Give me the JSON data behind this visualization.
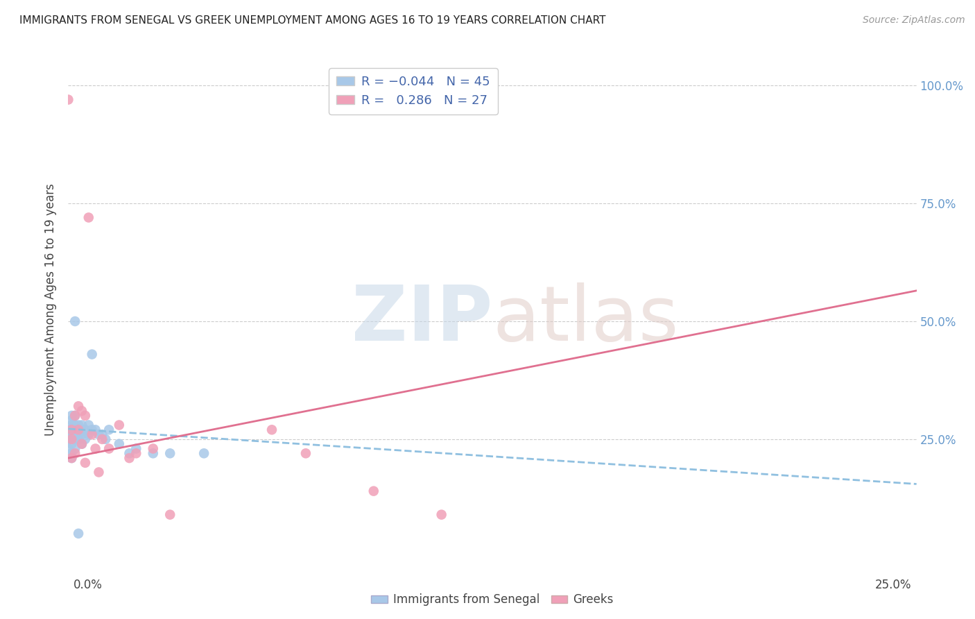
{
  "title": "IMMIGRANTS FROM SENEGAL VS GREEK UNEMPLOYMENT AMONG AGES 16 TO 19 YEARS CORRELATION CHART",
  "source": "Source: ZipAtlas.com",
  "ylabel": "Unemployment Among Ages 16 to 19 years",
  "yaxis_ticks": [
    "100.0%",
    "75.0%",
    "50.0%",
    "25.0%"
  ],
  "yaxis_tick_vals": [
    1.0,
    0.75,
    0.5,
    0.25
  ],
  "r_senegal": -0.044,
  "n_senegal": 45,
  "r_greeks": 0.286,
  "n_greeks": 27,
  "color_senegal": "#a8c8e8",
  "color_greeks": "#f0a0b8",
  "color_senegal_line": "#90c0e0",
  "color_greeks_line": "#e07090",
  "senegal_x": [
    0.0,
    0.0,
    0.0,
    0.0,
    0.001,
    0.001,
    0.001,
    0.001,
    0.001,
    0.001,
    0.001,
    0.001,
    0.001,
    0.002,
    0.002,
    0.002,
    0.002,
    0.002,
    0.002,
    0.003,
    0.003,
    0.003,
    0.003,
    0.004,
    0.004,
    0.004,
    0.005,
    0.005,
    0.006,
    0.006,
    0.007,
    0.007,
    0.008,
    0.009,
    0.01,
    0.011,
    0.012,
    0.015,
    0.018,
    0.02,
    0.025,
    0.03,
    0.04,
    0.002,
    0.003
  ],
  "senegal_y": [
    0.27,
    0.26,
    0.25,
    0.23,
    0.3,
    0.29,
    0.28,
    0.27,
    0.26,
    0.25,
    0.24,
    0.22,
    0.21,
    0.3,
    0.28,
    0.27,
    0.26,
    0.25,
    0.23,
    0.28,
    0.27,
    0.26,
    0.25,
    0.28,
    0.26,
    0.24,
    0.27,
    0.25,
    0.28,
    0.26,
    0.27,
    0.43,
    0.27,
    0.26,
    0.26,
    0.25,
    0.27,
    0.24,
    0.22,
    0.23,
    0.22,
    0.22,
    0.22,
    0.5,
    0.05
  ],
  "greeks_x": [
    0.0,
    0.001,
    0.001,
    0.001,
    0.002,
    0.002,
    0.003,
    0.003,
    0.004,
    0.004,
    0.005,
    0.005,
    0.006,
    0.007,
    0.008,
    0.009,
    0.01,
    0.012,
    0.015,
    0.018,
    0.02,
    0.025,
    0.03,
    0.06,
    0.07,
    0.09,
    0.11
  ],
  "greeks_y": [
    0.97,
    0.27,
    0.25,
    0.21,
    0.3,
    0.22,
    0.32,
    0.27,
    0.31,
    0.24,
    0.3,
    0.2,
    0.72,
    0.26,
    0.23,
    0.18,
    0.25,
    0.23,
    0.28,
    0.21,
    0.22,
    0.23,
    0.09,
    0.27,
    0.22,
    0.14,
    0.09
  ],
  "xlim": [
    0.0,
    0.25
  ],
  "ylim": [
    0.0,
    1.05
  ],
  "senegal_line_x": [
    0.0,
    0.25
  ],
  "senegal_line_y": [
    0.272,
    0.155
  ],
  "greeks_line_x": [
    0.0,
    0.25
  ],
  "greeks_line_y": [
    0.21,
    0.565
  ]
}
